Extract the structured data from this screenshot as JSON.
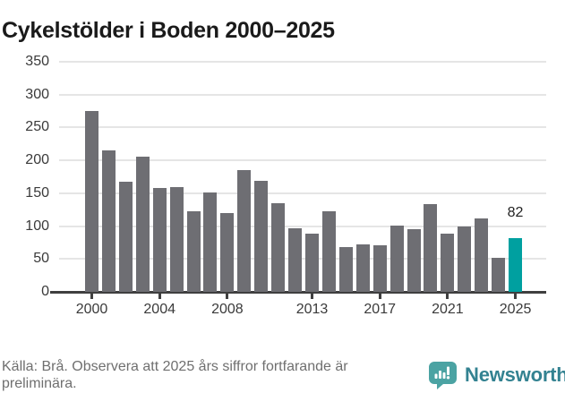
{
  "title": "Cykelstölder i Boden 2000–2025",
  "chart_data": {
    "type": "bar",
    "title": "Cykelstölder i Boden 2000–2025",
    "categories": [
      2000,
      2001,
      2002,
      2003,
      2004,
      2005,
      2006,
      2007,
      2008,
      2009,
      2010,
      2011,
      2012,
      2013,
      2014,
      2015,
      2016,
      2017,
      2018,
      2019,
      2020,
      2021,
      2022,
      2023,
      2024,
      2025
    ],
    "values": [
      275,
      215,
      167,
      205,
      158,
      159,
      122,
      151,
      120,
      185,
      169,
      135,
      97,
      89,
      123,
      68,
      72,
      71,
      101,
      96,
      134,
      88,
      100,
      111,
      52,
      82
    ],
    "xlabel": "",
    "ylabel": "",
    "ylim": [
      0,
      350
    ],
    "yticks": [
      0,
      50,
      100,
      150,
      200,
      250,
      300,
      350
    ],
    "xticks": [
      2000,
      2004,
      2008,
      2013,
      2017,
      2021,
      2025
    ],
    "grid": true,
    "legend_position": "none",
    "highlight": {
      "year": 2025,
      "value": 82,
      "label": "82"
    },
    "bar_color": "#6e6e73",
    "highlight_color": "#00a0a0",
    "gridline_color": "#e5e5e5",
    "axis_color": "#3f3f3f"
  },
  "footer": {
    "source_text": "Källa: Brå. Observera att 2025 års siffror fortfarande är preliminära.",
    "brand": "Newsworthy",
    "brand_icon": "newsworthy-bubble-barchart-icon",
    "brand_color": "#4ba3a3"
  }
}
